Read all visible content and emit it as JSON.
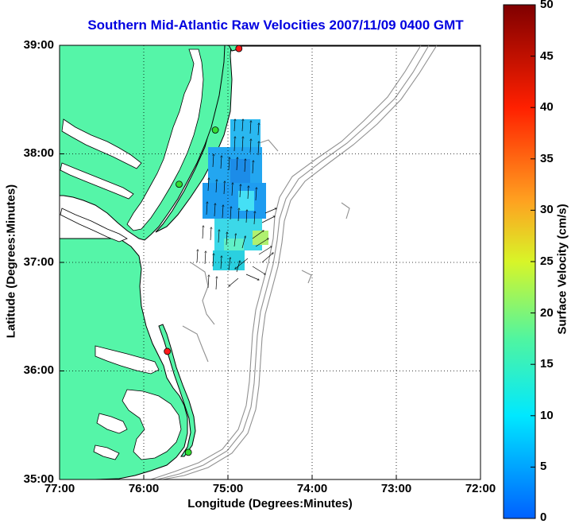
{
  "title": "Southern Mid-Atlantic Raw Velocities 2007/11/09 0400 GMT",
  "axes": {
    "xlabel": "Longitude (Degrees:Minutes)",
    "ylabel": "Latitude (Degrees:Minutes)",
    "x_ticks": [
      "77:00",
      "76:00",
      "75:00",
      "74:00",
      "73:00",
      "72:00"
    ],
    "y_ticks": [
      "39:00",
      "38:00",
      "37:00",
      "36:00",
      "35:00"
    ]
  },
  "colorbar": {
    "label": "Surface Velocity (cm/s)",
    "ticks": [
      "50",
      "45",
      "40",
      "35",
      "30",
      "25",
      "20",
      "15",
      "10",
      "5",
      "0"
    ],
    "range": [
      0,
      50
    ]
  },
  "colors": {
    "land": "#55f5a8",
    "water": "#ffffff",
    "bathymetry": "#909090",
    "title": "#0000e0",
    "station_active": "#ff1a1a",
    "station_inactive": "#33dd33"
  },
  "stations": [
    {
      "lon": -74.87,
      "lat": 38.97,
      "status": "active"
    },
    {
      "lon": -75.15,
      "lat": 38.22,
      "status": "inactive"
    },
    {
      "lon": -75.58,
      "lat": 37.72,
      "status": "inactive"
    },
    {
      "lon": -75.72,
      "lat": 36.18,
      "status": "active"
    },
    {
      "lon": -75.47,
      "lat": 35.25,
      "status": "inactive"
    }
  ]
}
